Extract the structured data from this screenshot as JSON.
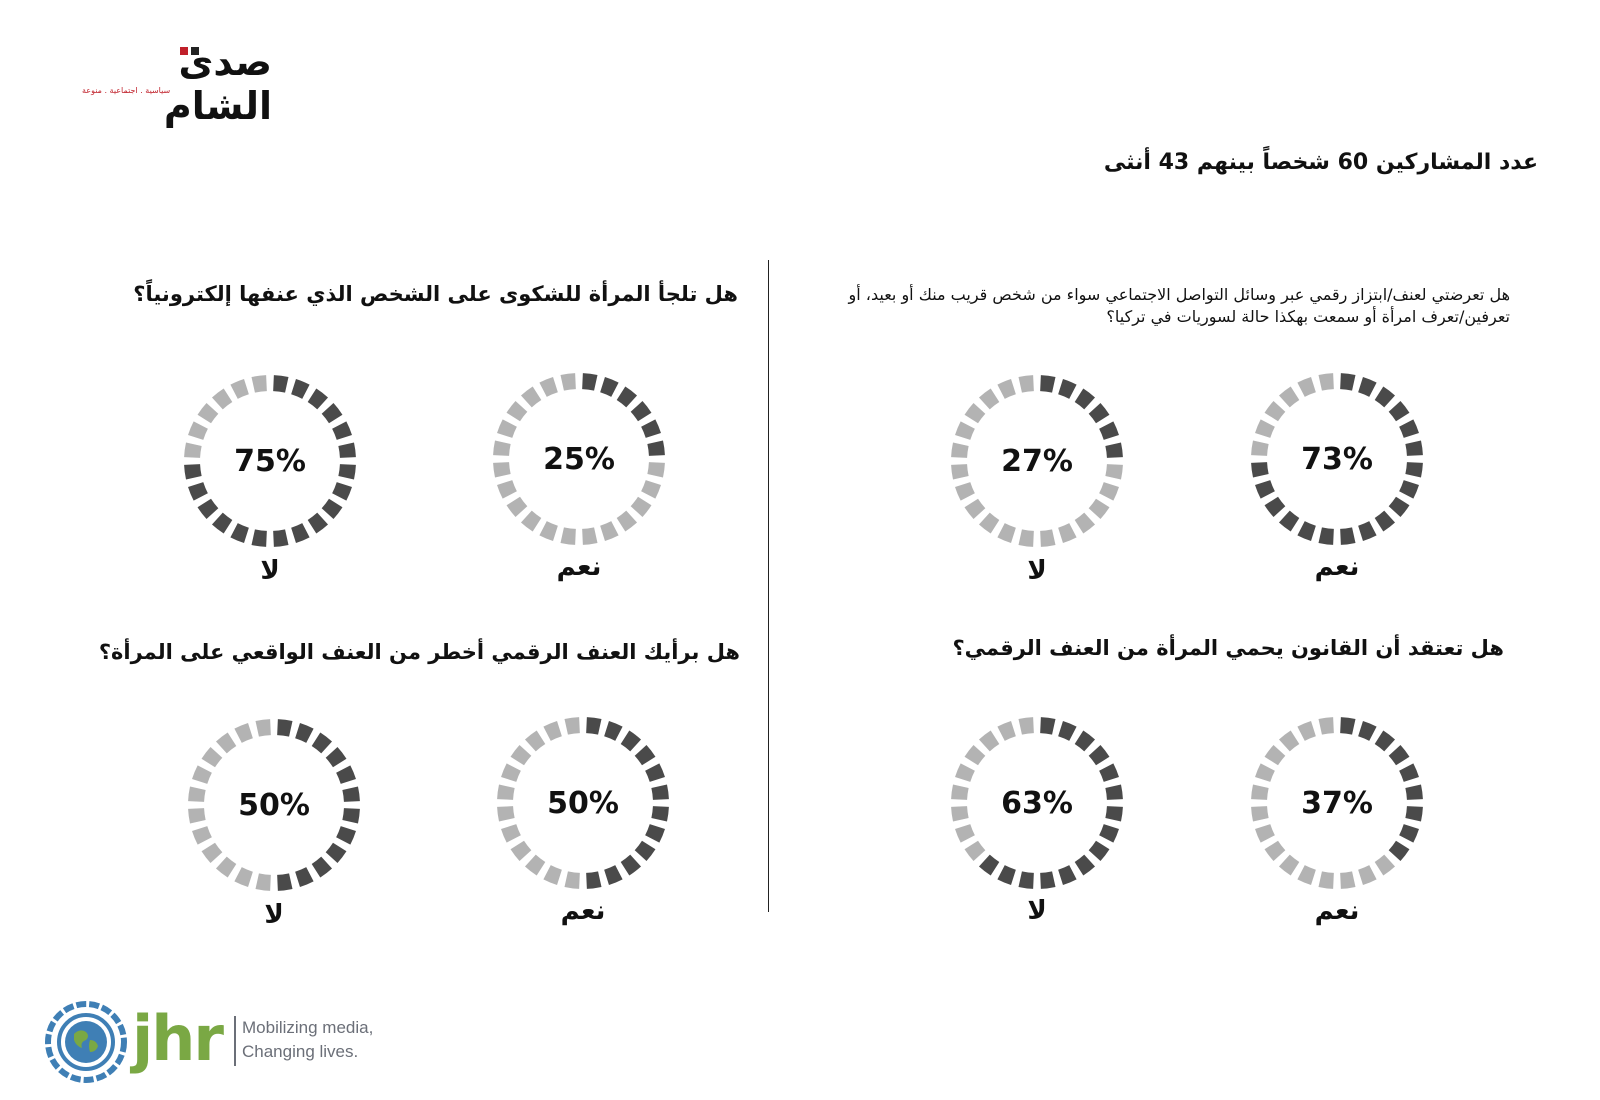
{
  "header": {
    "logo_text": "صدى الشام",
    "logo_subtitle": "سياسية . اجتماعية . منوعة",
    "participants": "عدد المشاركين 60 شخصاً بينهم 43 أنثى"
  },
  "colors": {
    "filled": "#4a4a4a",
    "empty": "#b3b3b3",
    "logo_accent": "#c0202a",
    "jhr_green": "#7aa844",
    "jhr_blue": "#3f7fb5",
    "jhr_gray": "#6b6f78"
  },
  "questions": [
    {
      "text": "هل تعرضتي لعنف/ابتزاز رقمي عبر وسائل التواصل الاجتماعي سواء من شخص قريب منك أو بعيد، أو تعرفين/تعرف امرأة أو سمعت بهكذا حالة لسوريات في تركيا؟"
    },
    {
      "text": "هل تلجأ المرأة للشكوى على الشخص الذي عنفها إلكترونياً؟"
    },
    {
      "text": "هل تعتقد أن القانون يحمي المرأة من العنف الرقمي؟"
    },
    {
      "text": "هل برأيك العنف الرقمي أخطر من العنف الواقعي على المرأة؟"
    }
  ],
  "chart_data": [
    {
      "type": "pie",
      "question": "هل تعرضتي لعنف/ابتزاز رقمي عبر وسائل التواصل الاجتماعي سواء من شخص قريب منك أو بعيد، أو تعرفين/تعرف امرأة أو سمعت بهكذا حالة لسوريات في تركيا؟",
      "categories": [
        "نعم",
        "لا"
      ],
      "values": [
        73,
        27
      ],
      "labels": [
        "73%",
        "27%"
      ]
    },
    {
      "type": "pie",
      "question": "هل تلجأ المرأة للشكوى على الشخص الذي عنفها إلكترونياً؟",
      "categories": [
        "نعم",
        "لا"
      ],
      "values": [
        25,
        75
      ],
      "labels": [
        "25%",
        "75%"
      ]
    },
    {
      "type": "pie",
      "question": "هل تعتقد أن القانون يحمي المرأة من العنف الرقمي؟",
      "categories": [
        "نعم",
        "لا"
      ],
      "values": [
        37,
        63
      ],
      "labels": [
        "37%",
        "63%"
      ]
    },
    {
      "type": "pie",
      "question": "هل برأيك العنف الرقمي أخطر من العنف الواقعي على المرأة؟",
      "categories": [
        "نعم",
        "لا"
      ],
      "values": [
        50,
        50
      ],
      "labels": [
        "50%",
        "50%"
      ]
    }
  ],
  "footer": {
    "brand": "jhr",
    "tagline_1": "Mobilizing media,",
    "tagline_2": "Changing lives."
  }
}
